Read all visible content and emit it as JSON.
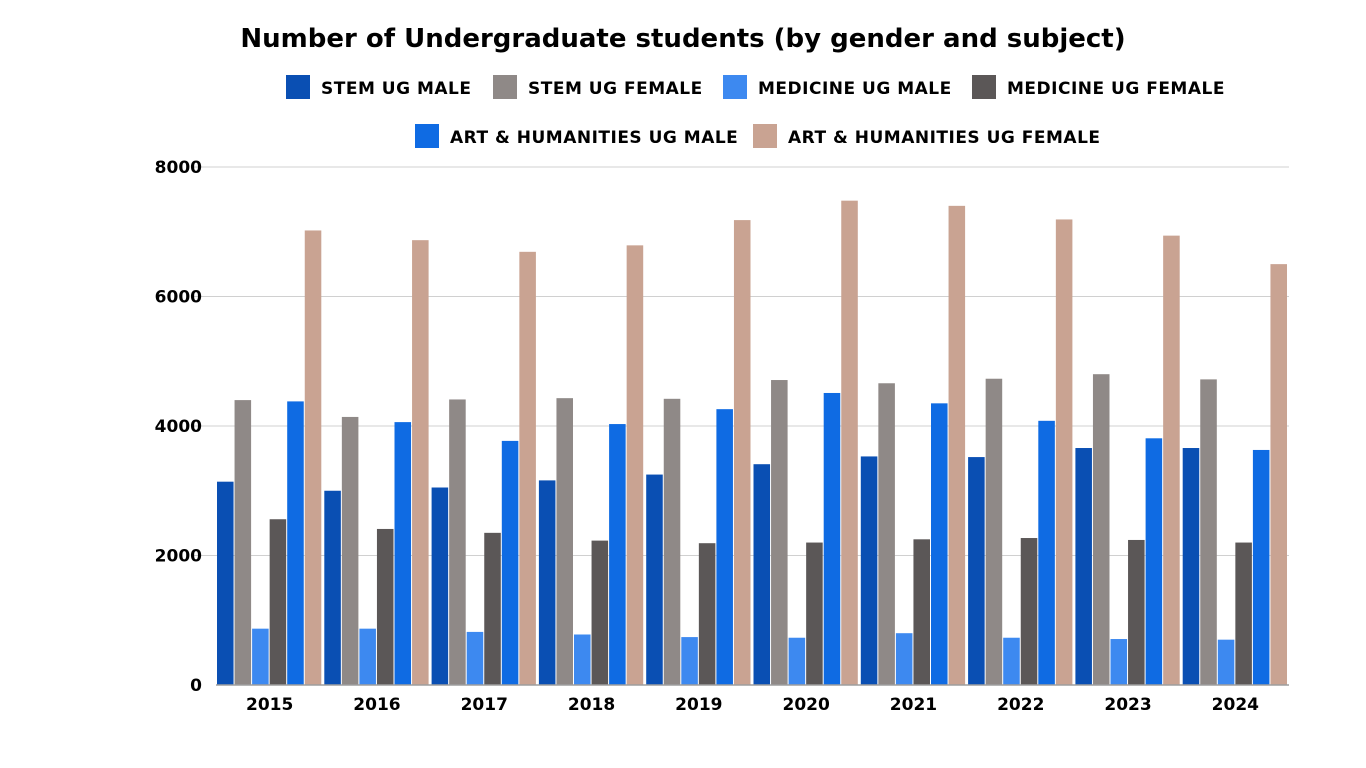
{
  "chart_data": {
    "type": "bar",
    "title": "Number of Undergraduate students (by gender and subject)",
    "xlabel": "",
    "ylabel": "",
    "ylim": [
      0,
      8000
    ],
    "yticks": [
      "0",
      "2000",
      "4000",
      "6000",
      "8000"
    ],
    "grid": true,
    "legend_position": "top",
    "categories": [
      "2015",
      "2016",
      "2017",
      "2018",
      "2019",
      "2020",
      "2021",
      "2022",
      "2023",
      "2024"
    ],
    "series": [
      {
        "name": "STEM UG MALE",
        "color": "#0a4fb3",
        "values": [
          3140,
          3000,
          3050,
          3160,
          3250,
          3410,
          3530,
          3520,
          3660,
          3660
        ]
      },
      {
        "name": "STEM UG FEMALE",
        "color": "#8f8987",
        "values": [
          4400,
          4140,
          4410,
          4430,
          4420,
          4710,
          4660,
          4730,
          4800,
          4720
        ]
      },
      {
        "name": "MEDICINE UG MALE",
        "color": "#3d89f0",
        "values": [
          870,
          870,
          820,
          780,
          740,
          730,
          800,
          730,
          710,
          700
        ]
      },
      {
        "name": "MEDICINE UG FEMALE",
        "color": "#5b5757",
        "values": [
          2560,
          2410,
          2350,
          2230,
          2190,
          2200,
          2250,
          2270,
          2240,
          2200
        ]
      },
      {
        "name": "ART & HUMANITIES UG MALE",
        "color": "#0f6be3",
        "values": [
          4380,
          4060,
          3770,
          4030,
          4260,
          4510,
          4350,
          4080,
          3810,
          3630
        ]
      },
      {
        "name": "ART & HUMANITIES UG FEMALE",
        "color": "#c9a392",
        "values": [
          7020,
          6870,
          6690,
          6790,
          7180,
          7480,
          7400,
          7190,
          6940,
          6500
        ]
      }
    ]
  }
}
